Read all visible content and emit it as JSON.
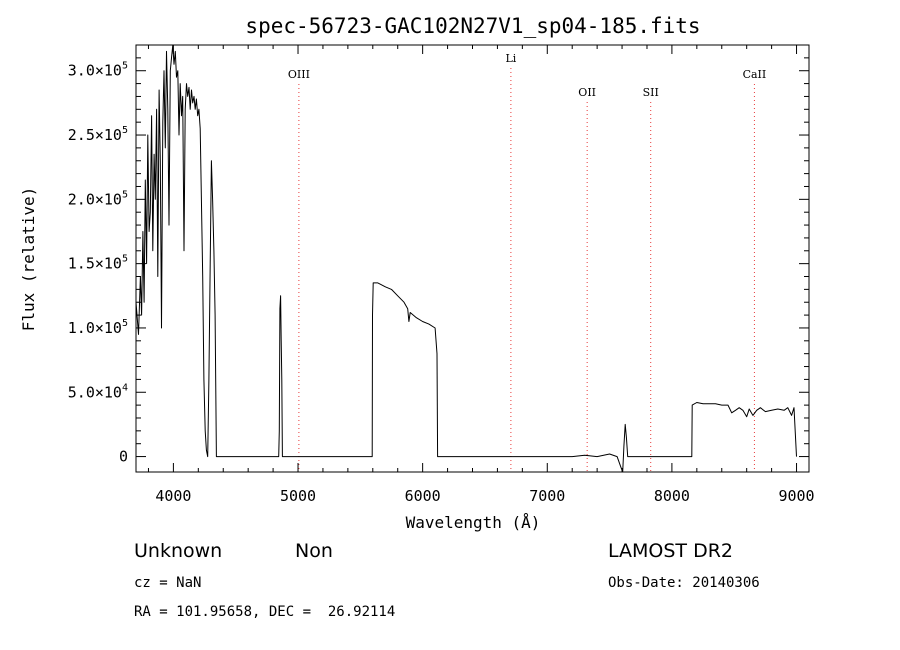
{
  "chart_data": {
    "type": "line",
    "title": "spec-56723-GAC102N27V1_sp04-185.fits",
    "xlabel": "Wavelength (Å)",
    "ylabel": "Flux (relative)",
    "xlim": [
      3700,
      9100
    ],
    "ylim": [
      -12000,
      320000
    ],
    "x_ticks": [
      4000,
      5000,
      6000,
      7000,
      8000,
      9000
    ],
    "y_ticks": [
      {
        "value": 0,
        "mantissa": "0",
        "exp": ""
      },
      {
        "value": 50000,
        "mantissa": "5.0×10",
        "exp": "4"
      },
      {
        "value": 100000,
        "mantissa": "1.0×10",
        "exp": "5"
      },
      {
        "value": 150000,
        "mantissa": "1.5×10",
        "exp": "5"
      },
      {
        "value": 200000,
        "mantissa": "2.0×10",
        "exp": "5"
      },
      {
        "value": 250000,
        "mantissa": "2.5×10",
        "exp": "5"
      },
      {
        "value": 300000,
        "mantissa": "3.0×10",
        "exp": "5"
      }
    ],
    "reference_lines": [
      {
        "label": "OIII",
        "wavelength": 5007
      },
      {
        "label": "Li",
        "wavelength": 6708
      },
      {
        "label": "OII",
        "wavelength": 7320
      },
      {
        "label": "SII",
        "wavelength": 7830
      },
      {
        "label": "CaII",
        "wavelength": 8662
      }
    ],
    "series": [
      {
        "color": "#000000",
        "points": [
          [
            3700,
            120000
          ],
          [
            3720,
            95000
          ],
          [
            3735,
            140000
          ],
          [
            3745,
            110000
          ],
          [
            3755,
            175000
          ],
          [
            3765,
            120000
          ],
          [
            3775,
            215000
          ],
          [
            3785,
            150000
          ],
          [
            3795,
            250000
          ],
          [
            3805,
            175000
          ],
          [
            3815,
            190000
          ],
          [
            3825,
            265000
          ],
          [
            3835,
            160000
          ],
          [
            3845,
            235000
          ],
          [
            3855,
            200000
          ],
          [
            3865,
            270000
          ],
          [
            3875,
            140000
          ],
          [
            3885,
            285000
          ],
          [
            3895,
            230000
          ],
          [
            3905,
            100000
          ],
          [
            3915,
            260000
          ],
          [
            3925,
            300000
          ],
          [
            3935,
            240000
          ],
          [
            3945,
            315000
          ],
          [
            3955,
            270000
          ],
          [
            3965,
            180000
          ],
          [
            3975,
            300000
          ],
          [
            3985,
            310000
          ],
          [
            3995,
            325000
          ],
          [
            4005,
            305000
          ],
          [
            4015,
            315000
          ],
          [
            4025,
            295000
          ],
          [
            4035,
            300000
          ],
          [
            4045,
            250000
          ],
          [
            4055,
            290000
          ],
          [
            4065,
            265000
          ],
          [
            4075,
            280000
          ],
          [
            4085,
            160000
          ],
          [
            4095,
            270000
          ],
          [
            4105,
            290000
          ],
          [
            4115,
            280000
          ],
          [
            4125,
            287000
          ],
          [
            4135,
            270000
          ],
          [
            4145,
            285000
          ],
          [
            4155,
            275000
          ],
          [
            4165,
            280000
          ],
          [
            4175,
            270000
          ],
          [
            4185,
            278000
          ],
          [
            4195,
            265000
          ],
          [
            4205,
            270000
          ],
          [
            4215,
            255000
          ],
          [
            4225,
            200000
          ],
          [
            4235,
            140000
          ],
          [
            4245,
            60000
          ],
          [
            4255,
            20000
          ],
          [
            4265,
            5000
          ],
          [
            4275,
            0
          ],
          [
            4285,
            60000
          ],
          [
            4295,
            150000
          ],
          [
            4305,
            230000
          ],
          [
            4315,
            200000
          ],
          [
            4325,
            160000
          ],
          [
            4335,
            110000
          ],
          [
            4345,
            0
          ],
          [
            4355,
            0
          ],
          [
            4500,
            0
          ],
          [
            4845,
            0
          ],
          [
            4850,
            20000
          ],
          [
            4855,
            115000
          ],
          [
            4860,
            125000
          ],
          [
            4865,
            90000
          ],
          [
            4870,
            60000
          ],
          [
            4875,
            0
          ],
          [
            5300,
            0
          ],
          [
            5595,
            0
          ],
          [
            5598,
            110000
          ],
          [
            5603,
            135000
          ],
          [
            5640,
            135000
          ],
          [
            5700,
            132000
          ],
          [
            5750,
            130000
          ],
          [
            5800,
            125000
          ],
          [
            5850,
            120000
          ],
          [
            5880,
            115000
          ],
          [
            5890,
            105000
          ],
          [
            5900,
            112000
          ],
          [
            5950,
            108000
          ],
          [
            6000,
            105000
          ],
          [
            6050,
            103000
          ],
          [
            6100,
            100000
          ],
          [
            6115,
            80000
          ],
          [
            6120,
            0
          ],
          [
            6130,
            0
          ],
          [
            6600,
            0
          ],
          [
            7200,
            0
          ],
          [
            7300,
            1000
          ],
          [
            7400,
            0
          ],
          [
            7500,
            2000
          ],
          [
            7560,
            0
          ],
          [
            7590,
            -8000
          ],
          [
            7605,
            -12000
          ],
          [
            7615,
            8000
          ],
          [
            7625,
            25000
          ],
          [
            7635,
            15000
          ],
          [
            7645,
            0
          ],
          [
            7700,
            0
          ],
          [
            7800,
            0
          ],
          [
            7900,
            0
          ],
          [
            8000,
            0
          ],
          [
            8100,
            0
          ],
          [
            8160,
            0
          ],
          [
            8163,
            40000
          ],
          [
            8200,
            42000
          ],
          [
            8250,
            41000
          ],
          [
            8300,
            41000
          ],
          [
            8350,
            41000
          ],
          [
            8400,
            40000
          ],
          [
            8450,
            40000
          ],
          [
            8480,
            34000
          ],
          [
            8510,
            36000
          ],
          [
            8540,
            38000
          ],
          [
            8570,
            36000
          ],
          [
            8600,
            31000
          ],
          [
            8620,
            37000
          ],
          [
            8650,
            32000
          ],
          [
            8680,
            36000
          ],
          [
            8710,
            38000
          ],
          [
            8750,
            35000
          ],
          [
            8800,
            36000
          ],
          [
            8850,
            37000
          ],
          [
            8900,
            36000
          ],
          [
            8930,
            38000
          ],
          [
            8960,
            32000
          ],
          [
            8980,
            38000
          ],
          [
            9000,
            0
          ]
        ]
      }
    ]
  },
  "info": {
    "class_name": "Unknown",
    "subclass": "Non",
    "survey": "LAMOST DR2",
    "cz": "cz = NaN",
    "obs_date": "Obs-Date: 20140306",
    "coords": "RA = 101.95658, DEC =  26.92114"
  }
}
